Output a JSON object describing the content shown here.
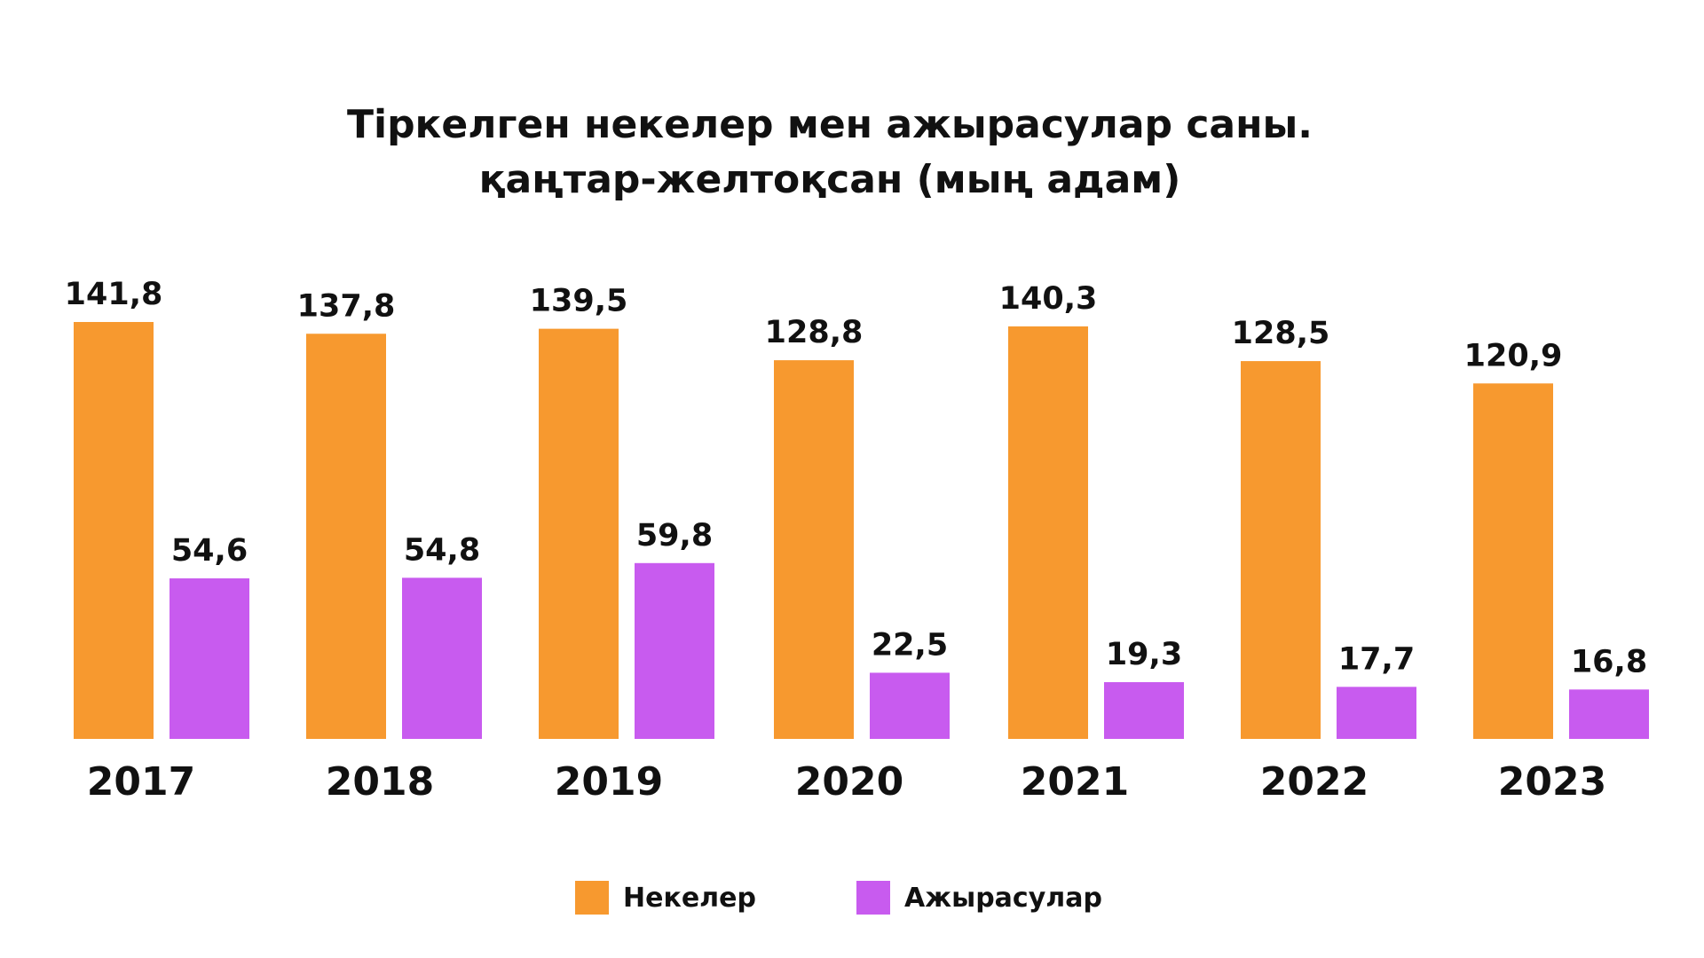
{
  "chart_data": {
    "type": "bar",
    "title_lines": [
      "Тіркелген некелер мен ажырасулар саны.",
      "қаңтар-желтоқсан (мың адам)"
    ],
    "categories": [
      "2017",
      "2018",
      "2019",
      "2020",
      "2021",
      "2022",
      "2023"
    ],
    "series": [
      {
        "name": "Некелер",
        "color": "#F7992F",
        "values": [
          141.8,
          137.8,
          139.5,
          128.8,
          140.3,
          128.5,
          120.9
        ],
        "labels": [
          "141,8",
          "137,8",
          "139,5",
          "128,8",
          "140,3",
          "128,5",
          "120,9"
        ]
      },
      {
        "name": "Ажырасулар",
        "color": "#C85BEF",
        "values": [
          54.6,
          54.8,
          59.8,
          22.5,
          19.3,
          17.7,
          16.8
        ],
        "labels": [
          "54,6",
          "54,8",
          "59,8",
          "22,5",
          "19,3",
          "17,7",
          "16,8"
        ]
      }
    ],
    "ylim": [
      0,
      141.8
    ],
    "grid": false,
    "legend_position": "bottom"
  }
}
